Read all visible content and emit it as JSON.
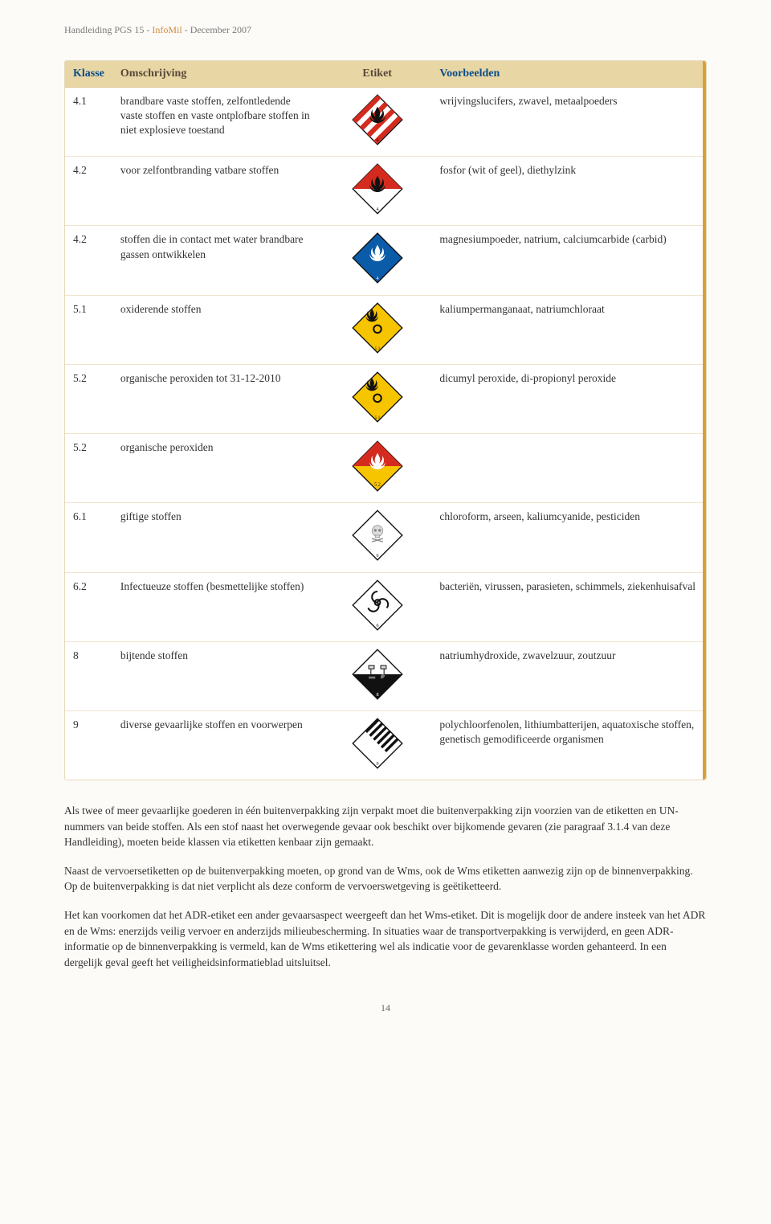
{
  "header": {
    "title_prefix": "Handleiding PGS 15",
    "title_mid": "InfoMil",
    "title_suffix": "December 2007"
  },
  "table": {
    "headers": {
      "klasse": "Klasse",
      "omschrijving": "Omschrijving",
      "etiket": "Etiket",
      "voorbeelden": "Voorbeelden"
    },
    "rows": [
      {
        "klasse": "4.1",
        "oms": "brandbare vaste stoffen, zelfontledende vaste stoffen en vaste ontplofbare stoffen in niet explosieve toestand",
        "vb": "wrijvingslucifers, zwavel, metaalpoeders",
        "icon": "stripes"
      },
      {
        "klasse": "4.2",
        "oms": "voor zelfontbranding vatbare stoffen",
        "vb": "fosfor (wit of geel), diethylzink",
        "icon": "half-red-white"
      },
      {
        "klasse": "4.2",
        "oms": "stoffen die in contact met water brandbare gassen ontwikkelen",
        "vb": "magnesiumpoeder, natrium, calciumcarbide (carbid)",
        "icon": "blue"
      },
      {
        "klasse": "5.1",
        "oms": "oxiderende stoffen",
        "vb": "kaliumpermanganaat, natriumchloraat",
        "icon": "yellow-o"
      },
      {
        "klasse": "5.2",
        "oms": "organische peroxiden tot 31-12-2010",
        "vb": "dicumyl peroxide, di-propionyl peroxide",
        "icon": "yellow-o"
      },
      {
        "klasse": "5.2",
        "oms": "organische peroxiden",
        "vb": "",
        "icon": "red-yellow"
      },
      {
        "klasse": "6.1",
        "oms": "giftige stoffen",
        "vb": "chloroform, arseen, kaliumcyanide, pesticiden",
        "icon": "white-skull"
      },
      {
        "klasse": "6.2",
        "oms": "Infectueuze stoffen (besmettelijke stoffen)",
        "vb": "bacteriën, virussen, parasieten, schimmels, ziekenhuisafval",
        "icon": "white-bio"
      },
      {
        "klasse": "8",
        "oms": "bijtende stoffen",
        "vb": "natriumhydroxide, zwavelzuur, zoutzuur",
        "icon": "corrosive"
      },
      {
        "klasse": "9",
        "oms": "diverse gevaarlijke stoffen en voorwerpen",
        "vb": "polychloorfenolen, lithiumbatterijen, aquatoxische stoffen, genetisch gemodificeerde organismen",
        "icon": "misc"
      }
    ]
  },
  "paragraphs": {
    "p1": "Als twee of meer gevaarlijke goederen in één buitenverpakking zijn verpakt moet die buitenverpakking zijn voorzien van de etiketten en UN-nummers van beide stoffen. Als een stof naast het overwegende gevaar ook beschikt over bijkomende gevaren (zie paragraaf 3.1.4 van deze Handleiding), moeten beide klassen via etiketten kenbaar zijn gemaakt.",
    "p2": "Naast de vervoersetiketten op de buitenverpakking moeten, op grond van de Wms, ook de Wms etiketten aanwezig zijn op de binnenverpakking. Op de buitenverpakking is dat niet verplicht als deze conform de vervoerswetgeving is geëtiketteerd.",
    "p3": "Het kan voorkomen dat het ADR-etiket een ander gevaarsaspect weergeeft dan het Wms-etiket. Dit is mogelijk door de andere insteek van het ADR en de Wms: enerzijds veilig vervoer en anderzijds milieubescherming. In situaties waar de transportverpakking is verwijderd, en geen ADR-informatie op de binnenverpakking is vermeld, kan de Wms etikettering wel als indicatie voor de gevarenklasse worden gehanteerd. In een dergelijk geval geeft het veiligheidsinformatieblad uitsluitsel."
  },
  "page_number": "14",
  "colors": {
    "header_bg": "#e8d6a4",
    "header_blue": "#0a4d8a",
    "accent_orange": "#d9a03a",
    "red": "#d52b1e",
    "blue": "#0a5ca8",
    "yellow": "#f7c400",
    "black": "#111111",
    "white": "#ffffff"
  }
}
